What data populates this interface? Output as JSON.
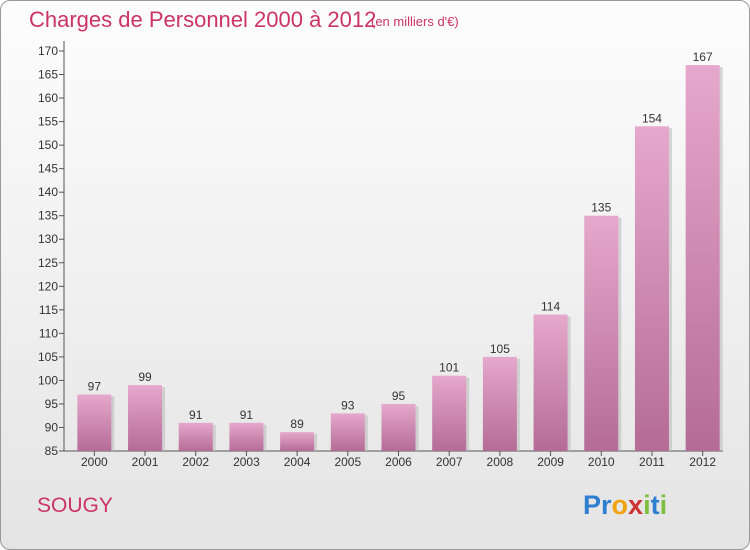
{
  "header": {
    "title": "Charges de Personnel 2000 à 2012",
    "subtitle": "(en milliers d'€)"
  },
  "footer": {
    "place": "SOUGY",
    "brand_letters": [
      {
        "ch": "P",
        "color": "#2f7fcf"
      },
      {
        "ch": "r",
        "color": "#2f7fcf"
      },
      {
        "ch": "o",
        "color": "#f2a20c"
      },
      {
        "ch": "x",
        "color": "#cc3333"
      },
      {
        "ch": "i",
        "color": "#7fbf3f"
      },
      {
        "ch": "t",
        "color": "#2f7fcf"
      },
      {
        "ch": "i",
        "color": "#7fbf3f"
      }
    ]
  },
  "colors": {
    "accent": "#cc3366",
    "bar_light": "#e6a8cc",
    "bar_dark": "#b46c97",
    "axis": "#555555"
  },
  "chart_data": {
    "type": "bar",
    "title": "Charges de Personnel 2000 à 2012",
    "subtitle": "(en milliers d'€)",
    "xlabel": "",
    "ylabel": "",
    "categories": [
      "2000",
      "2001",
      "2002",
      "2003",
      "2004",
      "2005",
      "2006",
      "2007",
      "2008",
      "2009",
      "2010",
      "2011",
      "2012"
    ],
    "values": [
      97,
      99,
      91,
      91,
      89,
      93,
      95,
      101,
      105,
      114,
      135,
      154,
      167
    ],
    "ylim": [
      85,
      170
    ],
    "ytick_step": 5,
    "grid": false,
    "legend": "none"
  }
}
